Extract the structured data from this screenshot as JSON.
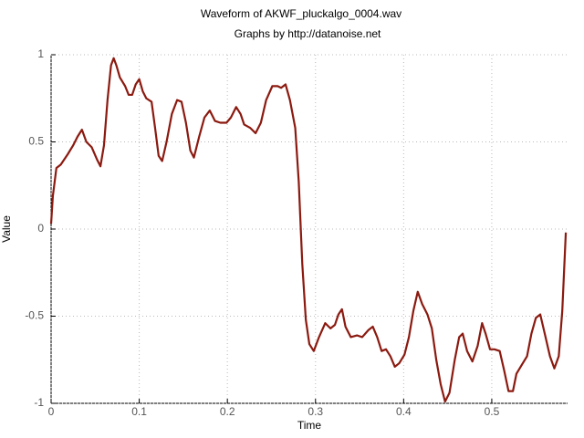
{
  "chart_data": {
    "type": "line",
    "title": "Waveform of AKWF_pluckalgo_0004.wav",
    "subtitle": "Graphs by http://datanoise.net",
    "x_label": "Time",
    "y_label": "Value",
    "xlim": [
      0,
      0.586
    ],
    "ylim": [
      -1,
      1
    ],
    "xticks": [
      0,
      0.1,
      0.2,
      0.3,
      0.4,
      0.5
    ],
    "yticks": [
      -1,
      -0.5,
      0,
      0.5,
      1
    ],
    "grid": true,
    "x": [
      0,
      0.002,
      0.006,
      0.011,
      0.019,
      0.025,
      0.03,
      0.035,
      0.04,
      0.046,
      0.052,
      0.056,
      0.06,
      0.064,
      0.068,
      0.071,
      0.074,
      0.078,
      0.084,
      0.088,
      0.092,
      0.096,
      0.1,
      0.104,
      0.108,
      0.114,
      0.118,
      0.122,
      0.126,
      0.131,
      0.137,
      0.143,
      0.148,
      0.153,
      0.158,
      0.162,
      0.168,
      0.174,
      0.18,
      0.186,
      0.192,
      0.199,
      0.204,
      0.21,
      0.215,
      0.219,
      0.226,
      0.232,
      0.238,
      0.244,
      0.251,
      0.257,
      0.261,
      0.266,
      0.271,
      0.277,
      0.281,
      0.285,
      0.289,
      0.293,
      0.298,
      0.304,
      0.311,
      0.317,
      0.322,
      0.326,
      0.33,
      0.334,
      0.34,
      0.347,
      0.353,
      0.36,
      0.365,
      0.37,
      0.375,
      0.38,
      0.385,
      0.39,
      0.395,
      0.401,
      0.406,
      0.411,
      0.416,
      0.421,
      0.427,
      0.432,
      0.437,
      0.442,
      0.447,
      0.452,
      0.458,
      0.463,
      0.467,
      0.472,
      0.478,
      0.484,
      0.489,
      0.493,
      0.498,
      0.503,
      0.509,
      0.514,
      0.519,
      0.524,
      0.528,
      0.534,
      0.54,
      0.545,
      0.55,
      0.555,
      0.561,
      0.566,
      0.571,
      0.576,
      0.58,
      0.584
    ],
    "series": [
      {
        "name": "waveform",
        "color": "#8b1a10",
        "values": [
          0.03,
          0.19,
          0.35,
          0.37,
          0.43,
          0.48,
          0.53,
          0.57,
          0.5,
          0.47,
          0.4,
          0.36,
          0.48,
          0.74,
          0.94,
          0.98,
          0.94,
          0.87,
          0.82,
          0.77,
          0.77,
          0.83,
          0.86,
          0.79,
          0.75,
          0.73,
          0.58,
          0.42,
          0.39,
          0.5,
          0.66,
          0.74,
          0.73,
          0.61,
          0.45,
          0.41,
          0.53,
          0.64,
          0.68,
          0.62,
          0.61,
          0.61,
          0.64,
          0.7,
          0.66,
          0.6,
          0.58,
          0.55,
          0.61,
          0.74,
          0.82,
          0.82,
          0.81,
          0.83,
          0.74,
          0.58,
          0.27,
          -0.2,
          -0.52,
          -0.66,
          -0.7,
          -0.62,
          -0.54,
          -0.57,
          -0.55,
          -0.49,
          -0.46,
          -0.56,
          -0.62,
          -0.61,
          -0.62,
          -0.58,
          -0.56,
          -0.62,
          -0.7,
          -0.69,
          -0.73,
          -0.79,
          -0.77,
          -0.72,
          -0.62,
          -0.47,
          -0.36,
          -0.43,
          -0.49,
          -0.57,
          -0.75,
          -0.89,
          -0.99,
          -0.94,
          -0.75,
          -0.62,
          -0.6,
          -0.7,
          -0.76,
          -0.67,
          -0.54,
          -0.6,
          -0.69,
          -0.69,
          -0.7,
          -0.81,
          -0.93,
          -0.93,
          -0.83,
          -0.78,
          -0.73,
          -0.6,
          -0.51,
          -0.49,
          -0.62,
          -0.73,
          -0.8,
          -0.73,
          -0.47,
          -0.02
        ]
      }
    ]
  }
}
